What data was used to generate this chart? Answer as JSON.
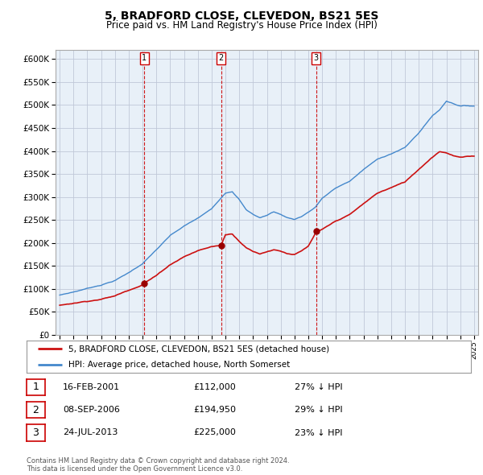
{
  "title": "5, BRADFORD CLOSE, CLEVEDON, BS21 5ES",
  "subtitle": "Price paid vs. HM Land Registry's House Price Index (HPI)",
  "background_color": "#ffffff",
  "plot_bg_color": "#e8f0f8",
  "grid_color": "#c0c8d8",
  "ylim": [
    0,
    620000
  ],
  "yticks": [
    0,
    50000,
    100000,
    150000,
    200000,
    250000,
    300000,
    350000,
    400000,
    450000,
    500000,
    550000,
    600000
  ],
  "ytick_labels": [
    "£0",
    "£50K",
    "£100K",
    "£150K",
    "£200K",
    "£250K",
    "£300K",
    "£350K",
    "£400K",
    "£450K",
    "£500K",
    "£550K",
    "£600K"
  ],
  "sale_dates": [
    2001.12,
    2006.69,
    2013.56
  ],
  "sale_prices": [
    112000,
    194950,
    225000
  ],
  "sale_labels": [
    "1",
    "2",
    "3"
  ],
  "hpi_line_color": "#4488cc",
  "price_line_color": "#cc1111",
  "sale_marker_color": "#990000",
  "vline_color": "#cc0000",
  "legend_entries": [
    "5, BRADFORD CLOSE, CLEVEDON, BS21 5ES (detached house)",
    "HPI: Average price, detached house, North Somerset"
  ],
  "table_rows": [
    {
      "num": "1",
      "date": "16-FEB-2001",
      "price": "£112,000",
      "hpi": "27% ↓ HPI"
    },
    {
      "num": "2",
      "date": "08-SEP-2006",
      "price": "£194,950",
      "hpi": "29% ↓ HPI"
    },
    {
      "num": "3",
      "date": "24-JUL-2013",
      "price": "£225,000",
      "hpi": "23% ↓ HPI"
    }
  ],
  "footer": "Contains HM Land Registry data © Crown copyright and database right 2024.\nThis data is licensed under the Open Government Licence v3.0."
}
